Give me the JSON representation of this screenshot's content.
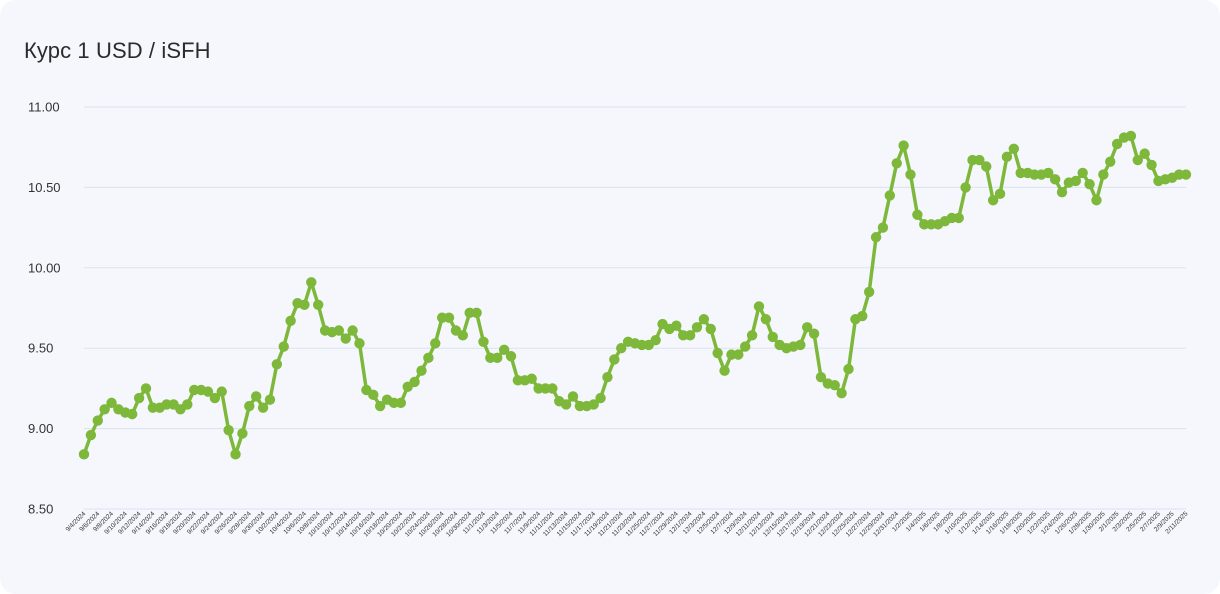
{
  "title": "Курс 1 USD / iSFH",
  "chart_data": {
    "type": "line",
    "title": "Курс 1 USD / iSFH",
    "xlabel": "",
    "ylabel": "",
    "ylim": [
      8.5,
      11.0
    ],
    "yticks": [
      "11.00",
      "10.50",
      "10.00",
      "9.50",
      "9.00",
      "8.50"
    ],
    "grid": true,
    "legend": "none",
    "color": "#7db83a",
    "xtick_labels": [
      "9/4/2024",
      "9/6/2024",
      "9/8/2024",
      "9/10/2024",
      "9/12/2024",
      "9/14/2024",
      "9/16/2024",
      "9/18/2024",
      "9/20/2024",
      "9/22/2024",
      "9/24/2024",
      "9/26/2024",
      "9/28/2024",
      "9/30/2024",
      "10/2/2024",
      "10/4/2024",
      "10/6/2024",
      "10/8/2024",
      "10/10/2024",
      "10/12/2024",
      "10/14/2024",
      "10/16/2024",
      "10/18/2024",
      "10/20/2024",
      "10/22/2024",
      "10/24/2024",
      "10/26/2024",
      "10/28/2024",
      "10/30/2024",
      "11/1/2024",
      "11/3/2024",
      "11/5/2024",
      "11/7/2024",
      "11/9/2024",
      "11/11/2024",
      "11/13/2024",
      "11/15/2024",
      "11/17/2024",
      "11/19/2024",
      "11/21/2024",
      "11/23/2024",
      "11/25/2024",
      "11/27/2024",
      "11/29/2024",
      "12/1/2024",
      "12/3/2024",
      "12/5/2024",
      "12/7/2024",
      "12/9/2024",
      "12/11/2024",
      "12/13/2024",
      "12/15/2024",
      "12/17/2024",
      "12/19/2024",
      "12/21/2024",
      "12/23/2024",
      "12/25/2024",
      "12/27/2024",
      "12/29/2024",
      "12/31/2024",
      "1/2/2025",
      "1/4/2025",
      "1/6/2025",
      "1/8/2025",
      "1/10/2025",
      "1/12/2025",
      "1/14/2025",
      "1/16/2025",
      "1/18/2025",
      "1/20/2025",
      "1/22/2025",
      "1/24/2025",
      "1/26/2025",
      "1/28/2025",
      "1/30/2025",
      "2/1/2025",
      "2/3/2025",
      "2/5/2025",
      "2/7/2025",
      "2/9/2025",
      "2/11/2025"
    ],
    "values": [
      8.84,
      8.96,
      9.05,
      9.12,
      9.16,
      9.12,
      9.1,
      9.09,
      9.19,
      9.25,
      9.13,
      9.13,
      9.15,
      9.15,
      9.12,
      9.15,
      9.24,
      9.24,
      9.23,
      9.19,
      9.23,
      8.99,
      8.84,
      8.97,
      9.14,
      9.2,
      9.13,
      9.18,
      9.4,
      9.51,
      9.67,
      9.78,
      9.77,
      9.91,
      9.77,
      9.61,
      9.6,
      9.61,
      9.56,
      9.61,
      9.53,
      9.24,
      9.21,
      9.14,
      9.18,
      9.16,
      9.16,
      9.26,
      9.29,
      9.36,
      9.44,
      9.53,
      9.69,
      9.69,
      9.61,
      9.58,
      9.72,
      9.72,
      9.54,
      9.44,
      9.44,
      9.49,
      9.45,
      9.3,
      9.3,
      9.31,
      9.25,
      9.25,
      9.25,
      9.17,
      9.15,
      9.2,
      9.14,
      9.14,
      9.15,
      9.19,
      9.32,
      9.43,
      9.5,
      9.54,
      9.53,
      9.52,
      9.52,
      9.55,
      9.65,
      9.62,
      9.64,
      9.58,
      9.58,
      9.63,
      9.68,
      9.62,
      9.47,
      9.36,
      9.46,
      9.46,
      9.51,
      9.58,
      9.76,
      9.68,
      9.57,
      9.52,
      9.5,
      9.51,
      9.52,
      9.63,
      9.59,
      9.32,
      9.28,
      9.27,
      9.22,
      9.37,
      9.68,
      9.7,
      9.85,
      10.19,
      10.25,
      10.45,
      10.65,
      10.76,
      10.58,
      10.33,
      10.27,
      10.27,
      10.27,
      10.29,
      10.31,
      10.31,
      10.5,
      10.67,
      10.67,
      10.63,
      10.42,
      10.46,
      10.69,
      10.74,
      10.59,
      10.59,
      10.58,
      10.58,
      10.59,
      10.55,
      10.47,
      10.53,
      10.54,
      10.59,
      10.52,
      10.42,
      10.58,
      10.66,
      10.77,
      10.81,
      10.82,
      10.67,
      10.71,
      10.64,
      10.54,
      10.55,
      10.56,
      10.58,
      10.58
    ]
  }
}
